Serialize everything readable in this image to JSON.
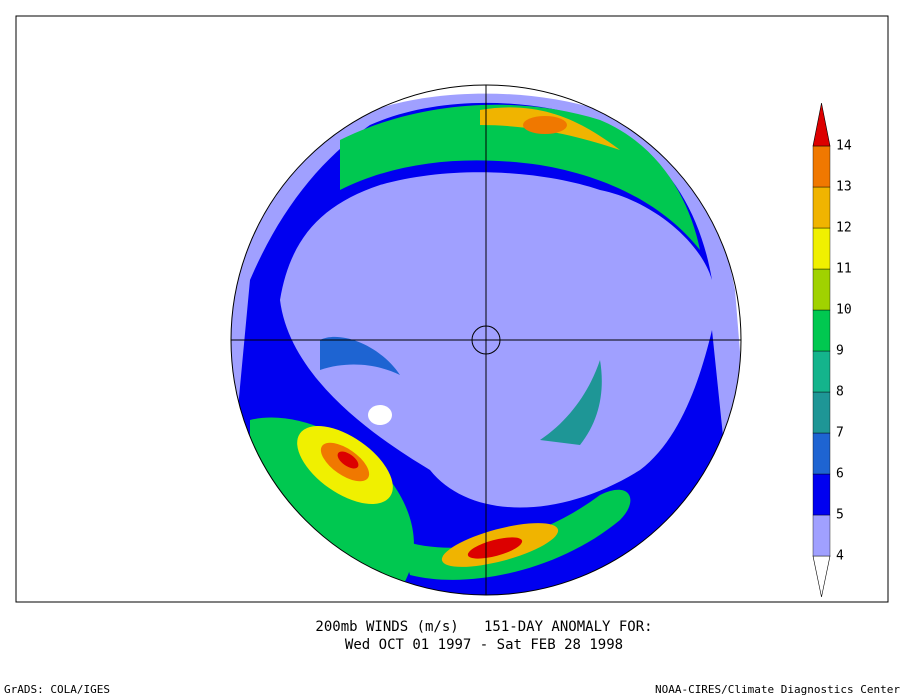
{
  "map": {
    "title": [
      "200mb WINDS (m/s)   151-DAY ANOMALY FOR:",
      "Wed OCT 01 1997 - Sat FEB 28 1998"
    ],
    "colorbar": {
      "levels": [
        4,
        5,
        6,
        7,
        8,
        9,
        10,
        11,
        12,
        13,
        14
      ],
      "colors": [
        "#ffffff",
        "#a0a0ff",
        "#0000f0",
        "#1e64d2",
        "#1e9696",
        "#14b48c",
        "#00c850",
        "#a0d200",
        "#f0f000",
        "#f0b400",
        "#f07800",
        "#dc0000"
      ]
    }
  },
  "footer": {
    "left": "GrADS: COLA/IGES",
    "right": "NOAA-CIRES/Climate Diagnostics Center"
  }
}
